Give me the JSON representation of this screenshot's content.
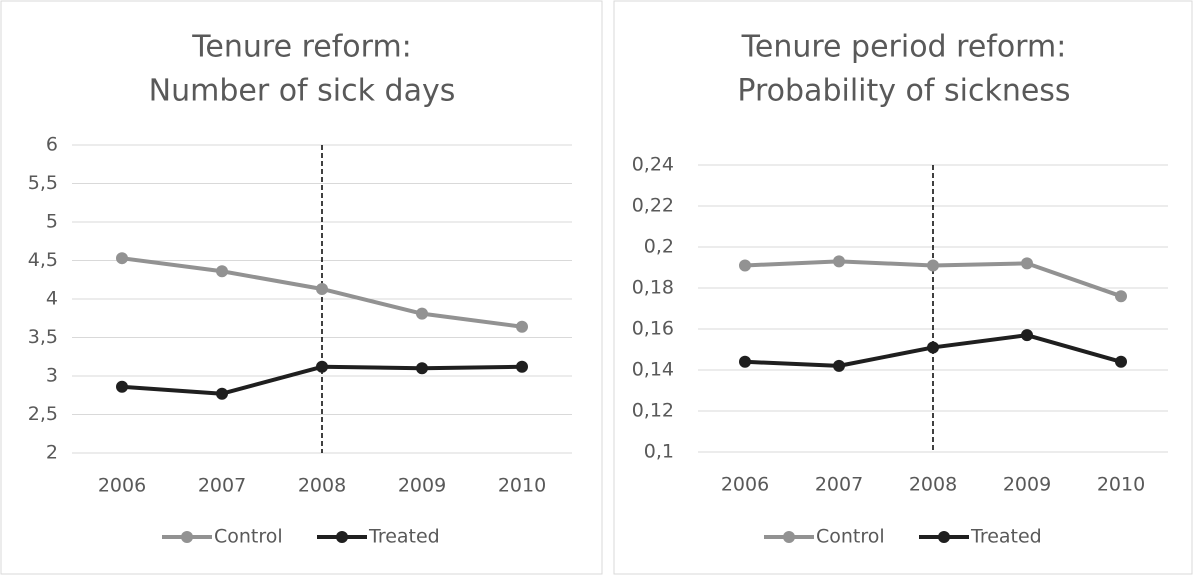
{
  "chart_data": [
    {
      "type": "line",
      "title": [
        "Tenure reform:",
        "Number of sick days"
      ],
      "categories": [
        "2006",
        "2007",
        "2008",
        "2009",
        "2010"
      ],
      "series": [
        {
          "name": "Control",
          "color": "#929292",
          "values": [
            4.53,
            4.36,
            4.13,
            3.81,
            3.64
          ]
        },
        {
          "name": "Treated",
          "color": "#1f1f1f",
          "values": [
            2.86,
            2.77,
            3.12,
            3.1,
            3.12
          ]
        }
      ],
      "ylim": [
        2,
        6
      ],
      "yticks": [
        2,
        {
          "value": 2.5,
          "label": "2,5"
        },
        3,
        {
          "value": 3.5,
          "label": "3,5"
        },
        4,
        {
          "value": 4.5,
          "label": "4,5"
        },
        5,
        {
          "value": 5.5,
          "label": "5,5"
        },
        6
      ],
      "grid": true,
      "legend": "bottom",
      "reference_line": {
        "category": "2008",
        "style": "dashed"
      }
    },
    {
      "type": "line",
      "title": [
        "Tenure period reform:",
        "Probability of sickness"
      ],
      "categories": [
        "2006",
        "2007",
        "2008",
        "2009",
        "2010"
      ],
      "series": [
        {
          "name": "Control",
          "color": "#929292",
          "values": [
            0.191,
            0.193,
            0.191,
            0.192,
            0.176
          ]
        },
        {
          "name": "Treated",
          "color": "#1f1f1f",
          "values": [
            0.144,
            0.142,
            0.151,
            0.157,
            0.144
          ]
        }
      ],
      "ylim": [
        0.1,
        0.24
      ],
      "yticks": [
        {
          "value": 0.1,
          "label": "0,1"
        },
        {
          "value": 0.12,
          "label": "0,12"
        },
        {
          "value": 0.14,
          "label": "0,14"
        },
        {
          "value": 0.16,
          "label": "0,16"
        },
        {
          "value": 0.18,
          "label": "0,18"
        },
        {
          "value": 0.2,
          "label": "0,2"
        },
        {
          "value": 0.22,
          "label": "0,22"
        },
        {
          "value": 0.24,
          "label": "0,24"
        }
      ],
      "grid": true,
      "legend": "bottom",
      "reference_line": {
        "category": "2008",
        "style": "dashed"
      }
    }
  ]
}
